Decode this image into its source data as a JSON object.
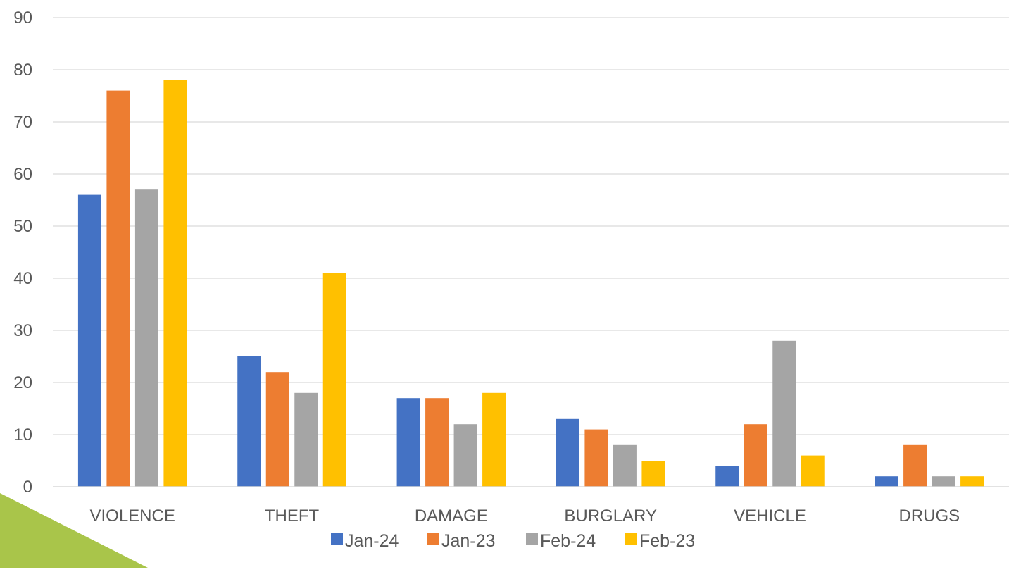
{
  "chart_data": {
    "type": "bar",
    "categories": [
      "VIOLENCE",
      "THEFT",
      "DAMAGE",
      "BURGLARY",
      "VEHICLE",
      "DRUGS"
    ],
    "series": [
      {
        "name": "Jan-24",
        "color": "#4472C4",
        "values": [
          56,
          25,
          17,
          13,
          4,
          2
        ]
      },
      {
        "name": "Jan-23",
        "color": "#ED7D31",
        "values": [
          76,
          22,
          17,
          11,
          12,
          8
        ]
      },
      {
        "name": "Feb-24",
        "color": "#A5A5A5",
        "values": [
          57,
          18,
          12,
          8,
          28,
          2
        ]
      },
      {
        "name": "Feb-23",
        "color": "#FFC000",
        "values": [
          78,
          41,
          18,
          5,
          6,
          2
        ]
      }
    ],
    "ylim": [
      0,
      90
    ],
    "yticks": [
      0,
      10,
      20,
      30,
      40,
      50,
      60,
      70,
      80,
      90
    ],
    "grid": true,
    "legend_position": "bottom"
  },
  "decoration": {
    "corner_shape": "triangle",
    "corner_color": "#A9C54A"
  }
}
